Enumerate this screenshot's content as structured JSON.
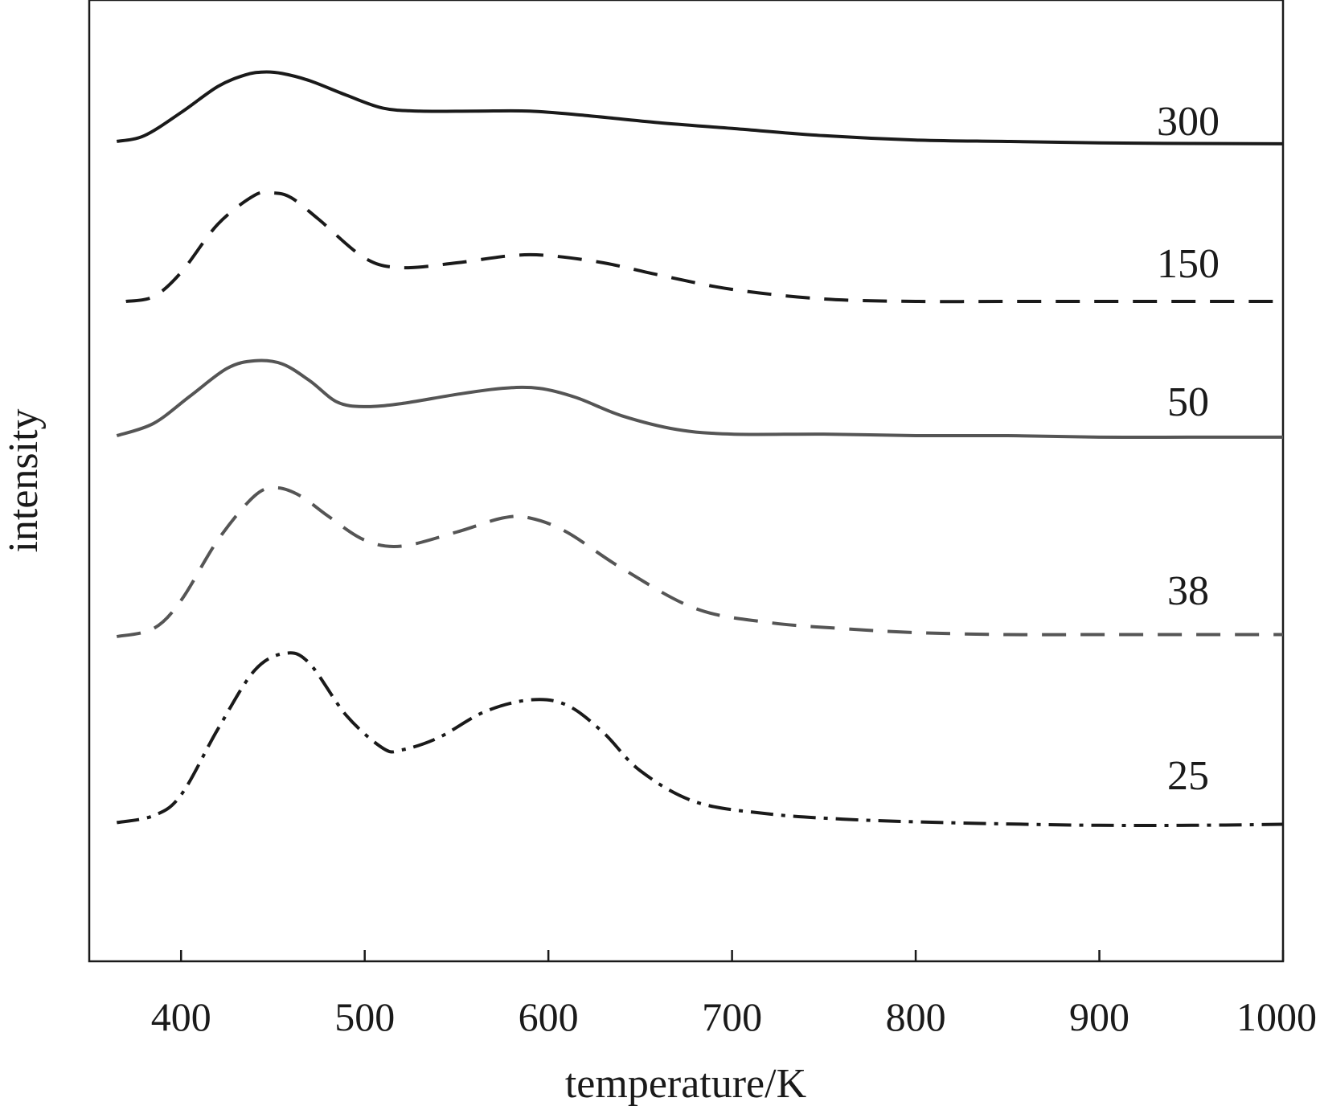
{
  "chart_data": {
    "type": "line",
    "xlabel": "temperature/K",
    "ylabel": "intensity",
    "xlim": [
      350,
      1000
    ],
    "x_ticks": [
      400,
      500,
      600,
      700,
      800,
      900,
      1000
    ],
    "x_tick_labels": [
      "400",
      "500",
      "600",
      "700",
      "800",
      "900",
      "1000"
    ],
    "y_ticks_shown": false,
    "grid": false,
    "legend": "none",
    "series": [
      {
        "name": "300",
        "color": "#1a1a1a",
        "line_style": "solid",
        "x": [
          365,
          380,
          400,
          420,
          435,
          445,
          455,
          470,
          490,
          510,
          530,
          560,
          590,
          620,
          660,
          700,
          750,
          800,
          850,
          900,
          950,
          1000
        ],
        "values": [
          0.1,
          0.12,
          0.2,
          0.29,
          0.33,
          0.34,
          0.335,
          0.31,
          0.26,
          0.215,
          0.205,
          0.205,
          0.205,
          0.19,
          0.165,
          0.145,
          0.12,
          0.105,
          0.1,
          0.095,
          0.093,
          0.092
        ]
      },
      {
        "name": "150",
        "color": "#1a1a1a",
        "line_style": "dashed",
        "x": [
          370,
          385,
          400,
          420,
          440,
          450,
          460,
          475,
          500,
          520,
          550,
          580,
          600,
          630,
          660,
          700,
          750,
          800,
          850,
          900,
          950,
          1000
        ],
        "values": [
          0.02,
          0.03,
          0.08,
          0.18,
          0.24,
          0.245,
          0.235,
          0.19,
          0.11,
          0.09,
          0.1,
          0.115,
          0.115,
          0.1,
          0.075,
          0.045,
          0.025,
          0.02,
          0.02,
          0.02,
          0.02,
          0.02
        ]
      },
      {
        "name": "50",
        "color": "#555555",
        "line_style": "solid",
        "x": [
          365,
          385,
          405,
          425,
          440,
          455,
          470,
          485,
          500,
          520,
          550,
          575,
          595,
          615,
          640,
          670,
          700,
          750,
          800,
          850,
          900,
          950,
          1000
        ],
        "values": [
          0.1,
          0.14,
          0.23,
          0.32,
          0.345,
          0.335,
          0.28,
          0.21,
          0.195,
          0.205,
          0.235,
          0.255,
          0.255,
          0.225,
          0.165,
          0.12,
          0.105,
          0.105,
          0.1,
          0.1,
          0.095,
          0.095,
          0.095
        ]
      },
      {
        "name": "38",
        "color": "#555555",
        "line_style": "dashed",
        "x": [
          365,
          385,
          400,
          420,
          440,
          452,
          465,
          480,
          500,
          520,
          550,
          575,
          590,
          610,
          640,
          680,
          720,
          760,
          800,
          850,
          900,
          950,
          1000
        ],
        "values": [
          0.03,
          0.05,
          0.12,
          0.27,
          0.38,
          0.4,
          0.38,
          0.33,
          0.27,
          0.255,
          0.29,
          0.325,
          0.325,
          0.29,
          0.2,
          0.1,
          0.065,
          0.05,
          0.04,
          0.035,
          0.035,
          0.035,
          0.035
        ]
      },
      {
        "name": "25",
        "color": "#1a1a1a",
        "line_style": "dashdot",
        "x": [
          365,
          385,
          400,
          420,
          440,
          457,
          470,
          490,
          510,
          520,
          540,
          565,
          590,
          610,
          630,
          650,
          680,
          720,
          760,
          800,
          850,
          900,
          950,
          1000
        ],
        "values": [
          0.02,
          0.04,
          0.1,
          0.29,
          0.46,
          0.51,
          0.48,
          0.33,
          0.235,
          0.23,
          0.265,
          0.34,
          0.375,
          0.36,
          0.28,
          0.17,
          0.08,
          0.045,
          0.03,
          0.022,
          0.016,
          0.012,
          0.012,
          0.015
        ]
      }
    ]
  }
}
